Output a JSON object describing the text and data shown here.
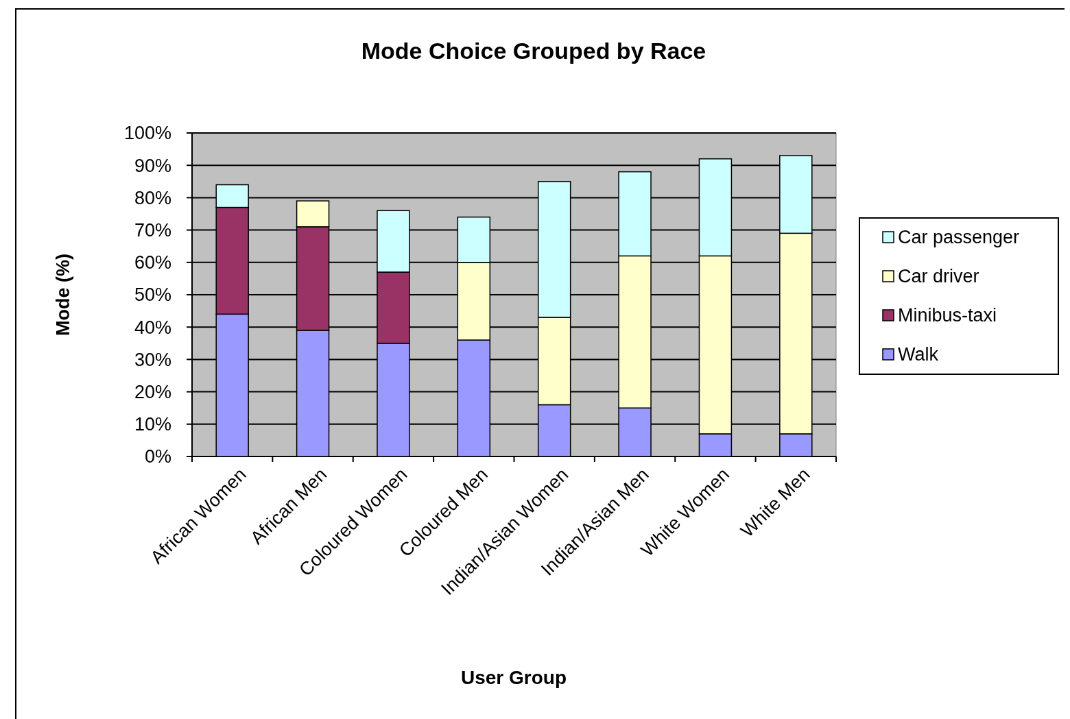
{
  "chart_data": {
    "type": "bar",
    "title": "Mode Choice Grouped by Race",
    "xlabel": "User Group",
    "ylabel": "Mode (%)",
    "categories": [
      "African Women",
      "African Men",
      "Coloured Women",
      "Coloured Men",
      "Indian/Asian Women",
      "Indian/Asian Men",
      "White Women",
      "White Men"
    ],
    "stacked": true,
    "ylim": [
      0,
      100
    ],
    "yticks": [
      {
        "value": 0,
        "label": "0%"
      },
      {
        "value": 10,
        "label": "10%"
      },
      {
        "value": 20,
        "label": "20%"
      },
      {
        "value": 30,
        "label": "30%"
      },
      {
        "value": 40,
        "label": "40%"
      },
      {
        "value": 50,
        "label": "50%"
      },
      {
        "value": 60,
        "label": "60%"
      },
      {
        "value": 70,
        "label": "70%"
      },
      {
        "value": 80,
        "label": "80%"
      },
      {
        "value": 90,
        "label": "90%"
      },
      {
        "value": 100,
        "label": "100%"
      }
    ],
    "grid": "y",
    "legend": "right",
    "series": [
      {
        "name": "Walk",
        "color": "#9999ff",
        "values": [
          44,
          39,
          35,
          36,
          16,
          15,
          7,
          7
        ]
      },
      {
        "name": "Minibus-taxi",
        "color": "#993366",
        "values": [
          33,
          32,
          22,
          0,
          0,
          0,
          0,
          0
        ]
      },
      {
        "name": "Car driver",
        "color": "#ffffcc",
        "values": [
          0,
          8,
          0,
          24,
          27,
          47,
          55,
          62
        ]
      },
      {
        "name": "Car passenger",
        "color": "#ccffff",
        "values": [
          7,
          0,
          19,
          14,
          42,
          26,
          30,
          24
        ]
      }
    ]
  }
}
